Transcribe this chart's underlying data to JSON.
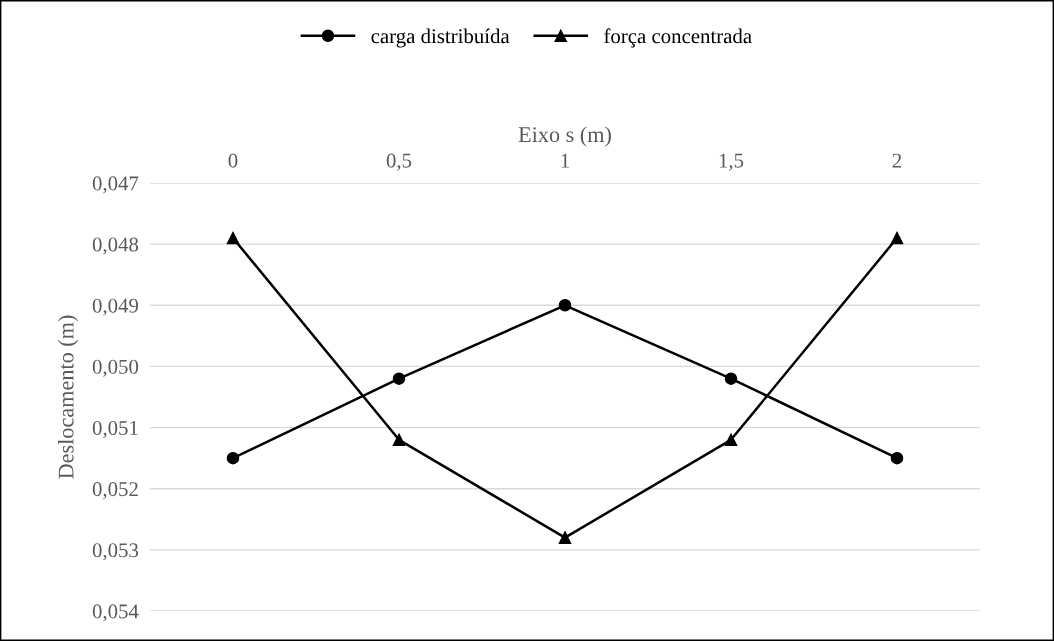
{
  "chart_data": {
    "type": "line",
    "xlabel": "Eixo s (m)",
    "ylabel": "Deslocamento (m)",
    "categories": [
      "0",
      "0,5",
      "1",
      "1,5",
      "2"
    ],
    "series": [
      {
        "name": "carga distribuída",
        "color": "#000000",
        "marker": "circle",
        "values": [
          0.0515,
          0.0502,
          0.049,
          0.0502,
          0.0515
        ]
      },
      {
        "name": "força concentrada",
        "color": "#000000",
        "marker": "triangle",
        "values": [
          0.0479,
          0.0512,
          0.0528,
          0.0512,
          0.0479
        ]
      }
    ],
    "ylim": [
      0.054,
      0.047
    ],
    "yticks": [
      {
        "value": 0.047,
        "label": "0,047"
      },
      {
        "value": 0.048,
        "label": "0,048"
      },
      {
        "value": 0.049,
        "label": "0,049"
      },
      {
        "value": 0.05,
        "label": "0,050"
      },
      {
        "value": 0.051,
        "label": "0,051"
      },
      {
        "value": 0.052,
        "label": "0,052"
      },
      {
        "value": 0.053,
        "label": "0,053"
      },
      {
        "value": 0.054,
        "label": "0,054"
      }
    ],
    "grid": "y",
    "legend": "top",
    "line_style": "solid"
  }
}
